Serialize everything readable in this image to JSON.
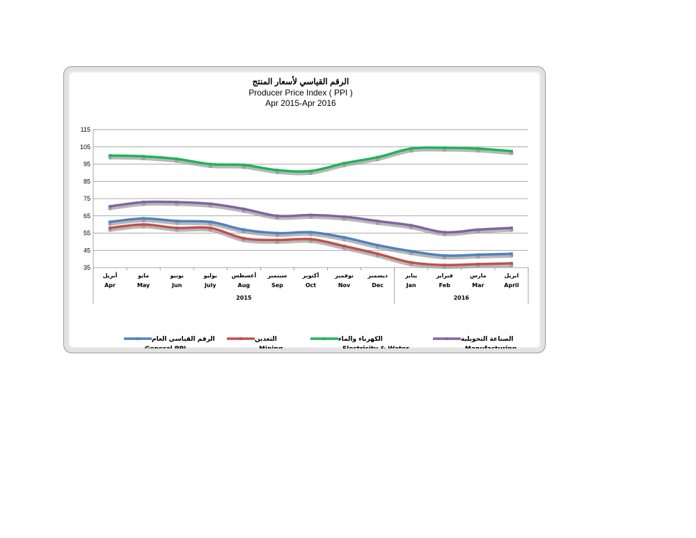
{
  "chart_data": {
    "type": "line",
    "title_ar": "الرقم القياسي لأسعار المنتج",
    "title": "Producer Price Index ( PPI )",
    "subtitle": "Apr 2015-Apr 2016",
    "categories_ar": [
      "أبريل",
      "مايو",
      "يونيو",
      "يوليو",
      "أغسطس",
      "سبتمبر",
      "أكتوبر",
      "نوفمبر",
      "ديسمبر",
      "يناير",
      "فبراير",
      "مارس",
      "ابريل"
    ],
    "categories": [
      "Apr",
      "May",
      "Jun",
      "July",
      "Aug",
      "Sep",
      "Oct",
      "Nov",
      "Dec",
      "Jan",
      "Feb",
      "Mar",
      "April"
    ],
    "years": [
      {
        "label": "2015",
        "from": 0,
        "to": 8
      },
      {
        "label": "2016",
        "from": 9,
        "to": 12
      }
    ],
    "yticks": [
      35,
      45,
      55,
      65,
      75,
      85,
      95,
      105,
      115
    ],
    "ylim": [
      35,
      115
    ],
    "grid": true,
    "legend_position": "bottom",
    "series": [
      {
        "name": "General PPI",
        "name_ar": "الرقم القياسي العام",
        "color": "#4f81bd",
        "values": [
          61.5,
          63.5,
          62,
          61.5,
          57,
          55,
          55.5,
          52.5,
          48,
          44.5,
          42,
          42.5,
          43
        ]
      },
      {
        "name": "Mining",
        "name_ar": "التعدين",
        "color": "#c0504d",
        "values": [
          58,
          60,
          58,
          58,
          52,
          51,
          51.5,
          47.5,
          43,
          38,
          36.5,
          37,
          37.5
        ]
      },
      {
        "name": "Electricity & Water",
        "name_ar": "الكهرباء والماء",
        "color": "#1fb35a",
        "values": [
          100,
          99.5,
          98,
          95,
          94.5,
          91.5,
          91,
          95.5,
          99,
          104,
          104.5,
          104,
          102.5
        ]
      },
      {
        "name": "Manufacturing",
        "name_ar": "الصناعة التحويلية",
        "color": "#8064a2",
        "values": [
          70.5,
          73,
          73,
          72,
          69,
          65,
          65.5,
          64.5,
          62,
          59.5,
          55.5,
          57,
          58
        ]
      }
    ]
  }
}
